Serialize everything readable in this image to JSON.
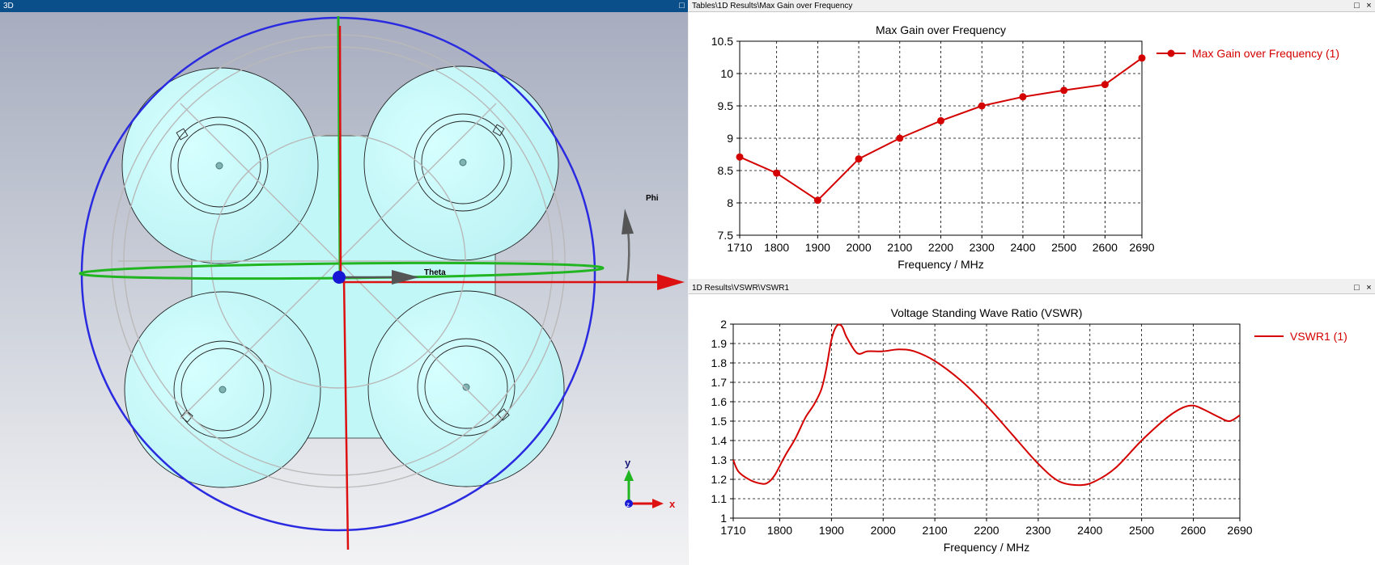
{
  "view3d": {
    "title": "3D",
    "labels": {
      "theta": "Theta",
      "phi": "Phi",
      "y_axis": "y",
      "x_axis": "x",
      "z_axis": "z"
    }
  },
  "gain_panel": {
    "path": "Tables\\1D Results\\Max Gain over Frequency",
    "legend": "Max Gain over Frequency (1)"
  },
  "vswr_panel": {
    "path": "1D Results\\VSWR\\VSWR1",
    "legend": "VSWR1 (1)"
  },
  "window_buttons": {
    "maximize": "□",
    "close": "×"
  },
  "colors": {
    "titlebar_3d": "#0b4f8a",
    "curve": "#d40000",
    "antenna": "#c2f7f7"
  },
  "chart_data": [
    {
      "type": "line",
      "title": "Max Gain over Frequency",
      "xlabel": "Frequency / MHz",
      "ylabel": "",
      "x": [
        1710,
        1800,
        1900,
        2000,
        2100,
        2200,
        2300,
        2400,
        2500,
        2600,
        2690
      ],
      "series": [
        {
          "name": "Max Gain over Frequency (1)",
          "values": [
            8.71,
            8.46,
            8.04,
            8.68,
            9.0,
            9.27,
            9.5,
            9.64,
            9.74,
            9.83,
            10.24
          ]
        }
      ],
      "xlim": [
        1710,
        2690
      ],
      "ylim": [
        7.5,
        10.5
      ],
      "xticks": [
        1710,
        1800,
        1900,
        2000,
        2100,
        2200,
        2300,
        2400,
        2500,
        2600,
        2690
      ],
      "yticks": [
        7.5,
        8,
        8.5,
        9,
        9.5,
        10,
        10.5
      ],
      "grid": true,
      "markers": true,
      "legend": "top-right"
    },
    {
      "type": "line",
      "title": "Voltage Standing Wave Ratio (VSWR)",
      "xlabel": "Frequency / MHz",
      "ylabel": "",
      "x": [
        1710,
        1720,
        1740,
        1760,
        1775,
        1790,
        1810,
        1830,
        1850,
        1865,
        1880,
        1890,
        1900,
        1910,
        1920,
        1930,
        1950,
        1970,
        2000,
        2030,
        2060,
        2100,
        2150,
        2200,
        2250,
        2300,
        2340,
        2380,
        2410,
        2450,
        2500,
        2550,
        2580,
        2600,
        2620,
        2650,
        2670,
        2690
      ],
      "series": [
        {
          "name": "VSWR1 (1)",
          "values": [
            1.3,
            1.24,
            1.2,
            1.18,
            1.18,
            1.22,
            1.32,
            1.41,
            1.52,
            1.58,
            1.66,
            1.77,
            1.92,
            1.99,
            1.99,
            1.93,
            1.85,
            1.86,
            1.86,
            1.87,
            1.86,
            1.81,
            1.71,
            1.58,
            1.43,
            1.28,
            1.19,
            1.17,
            1.19,
            1.26,
            1.4,
            1.52,
            1.57,
            1.58,
            1.56,
            1.52,
            1.5,
            1.53
          ]
        }
      ],
      "xlim": [
        1710,
        2690
      ],
      "ylim": [
        1,
        2
      ],
      "xticks": [
        1710,
        1800,
        1900,
        2000,
        2100,
        2200,
        2300,
        2400,
        2500,
        2600,
        2690
      ],
      "yticks": [
        1,
        1.1,
        1.2,
        1.3,
        1.4,
        1.5,
        1.6,
        1.7,
        1.8,
        1.9,
        2
      ],
      "grid": true,
      "markers": false,
      "legend": "top-right"
    }
  ]
}
